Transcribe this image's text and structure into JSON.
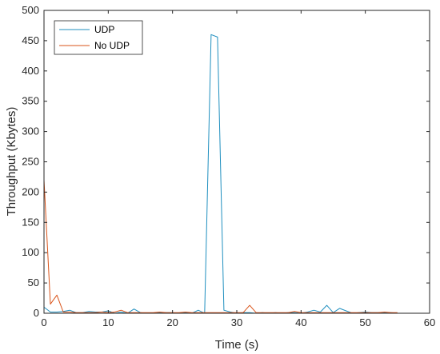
{
  "chart_data": {
    "type": "line",
    "xlabel": "Time (s)",
    "ylabel": "Throughput (Kbytes)",
    "xlim": [
      0,
      60
    ],
    "ylim": [
      0,
      500
    ],
    "xticks": [
      "0",
      "10",
      "20",
      "30",
      "40",
      "50",
      "60"
    ],
    "yticks": [
      "0",
      "50",
      "100",
      "150",
      "200",
      "250",
      "300",
      "350",
      "400",
      "450",
      "500"
    ],
    "grid": false,
    "legend_position": "top-left",
    "series": [
      {
        "name": "UDP",
        "color": "#1f8fbf",
        "x": [
          0,
          1,
          2,
          3,
          4,
          5,
          6,
          7,
          8,
          9,
          10,
          11,
          12,
          13,
          14,
          15,
          16,
          17,
          18,
          19,
          20,
          21,
          22,
          23,
          24,
          25,
          26,
          27,
          28,
          29,
          30,
          31,
          32,
          33,
          34,
          35,
          36,
          37,
          38,
          39,
          40,
          41,
          42,
          43,
          44,
          45,
          46,
          47,
          48,
          49,
          50,
          51,
          52,
          53,
          54,
          55
        ],
        "y": [
          10,
          2,
          2,
          3,
          5,
          1,
          1,
          3,
          2,
          2,
          4,
          0,
          2,
          0,
          7,
          1,
          0,
          0,
          1,
          1,
          1,
          0,
          1,
          0,
          5,
          0,
          460,
          456,
          5,
          2,
          0,
          1,
          1,
          0,
          1,
          0,
          1,
          0,
          1,
          1,
          0,
          2,
          5,
          2,
          13,
          1,
          8,
          4,
          0,
          1,
          2,
          1,
          1,
          1,
          1,
          0
        ]
      },
      {
        "name": "No UDP",
        "color": "#d95319",
        "x": [
          0,
          1,
          2,
          3,
          4,
          5,
          6,
          7,
          8,
          9,
          10,
          11,
          12,
          13,
          14,
          15,
          16,
          17,
          18,
          19,
          20,
          21,
          22,
          23,
          24,
          25,
          26,
          27,
          28,
          29,
          30,
          31,
          32,
          33,
          34,
          35,
          36,
          37,
          38,
          39,
          40,
          41,
          42,
          43,
          44,
          45,
          46,
          47,
          48,
          49,
          50,
          51,
          52,
          53,
          54,
          55
        ],
        "y": [
          220,
          15,
          30,
          2,
          2,
          1,
          1,
          1,
          1,
          2,
          1,
          2,
          5,
          1,
          1,
          1,
          1,
          1,
          2,
          1,
          1,
          1,
          2,
          1,
          1,
          1,
          1,
          1,
          1,
          1,
          1,
          1,
          13,
          1,
          1,
          1,
          1,
          1,
          1,
          3,
          1,
          1,
          1,
          1,
          1,
          1,
          1,
          1,
          1,
          1,
          1,
          1,
          1,
          2,
          1,
          1
        ]
      }
    ]
  }
}
